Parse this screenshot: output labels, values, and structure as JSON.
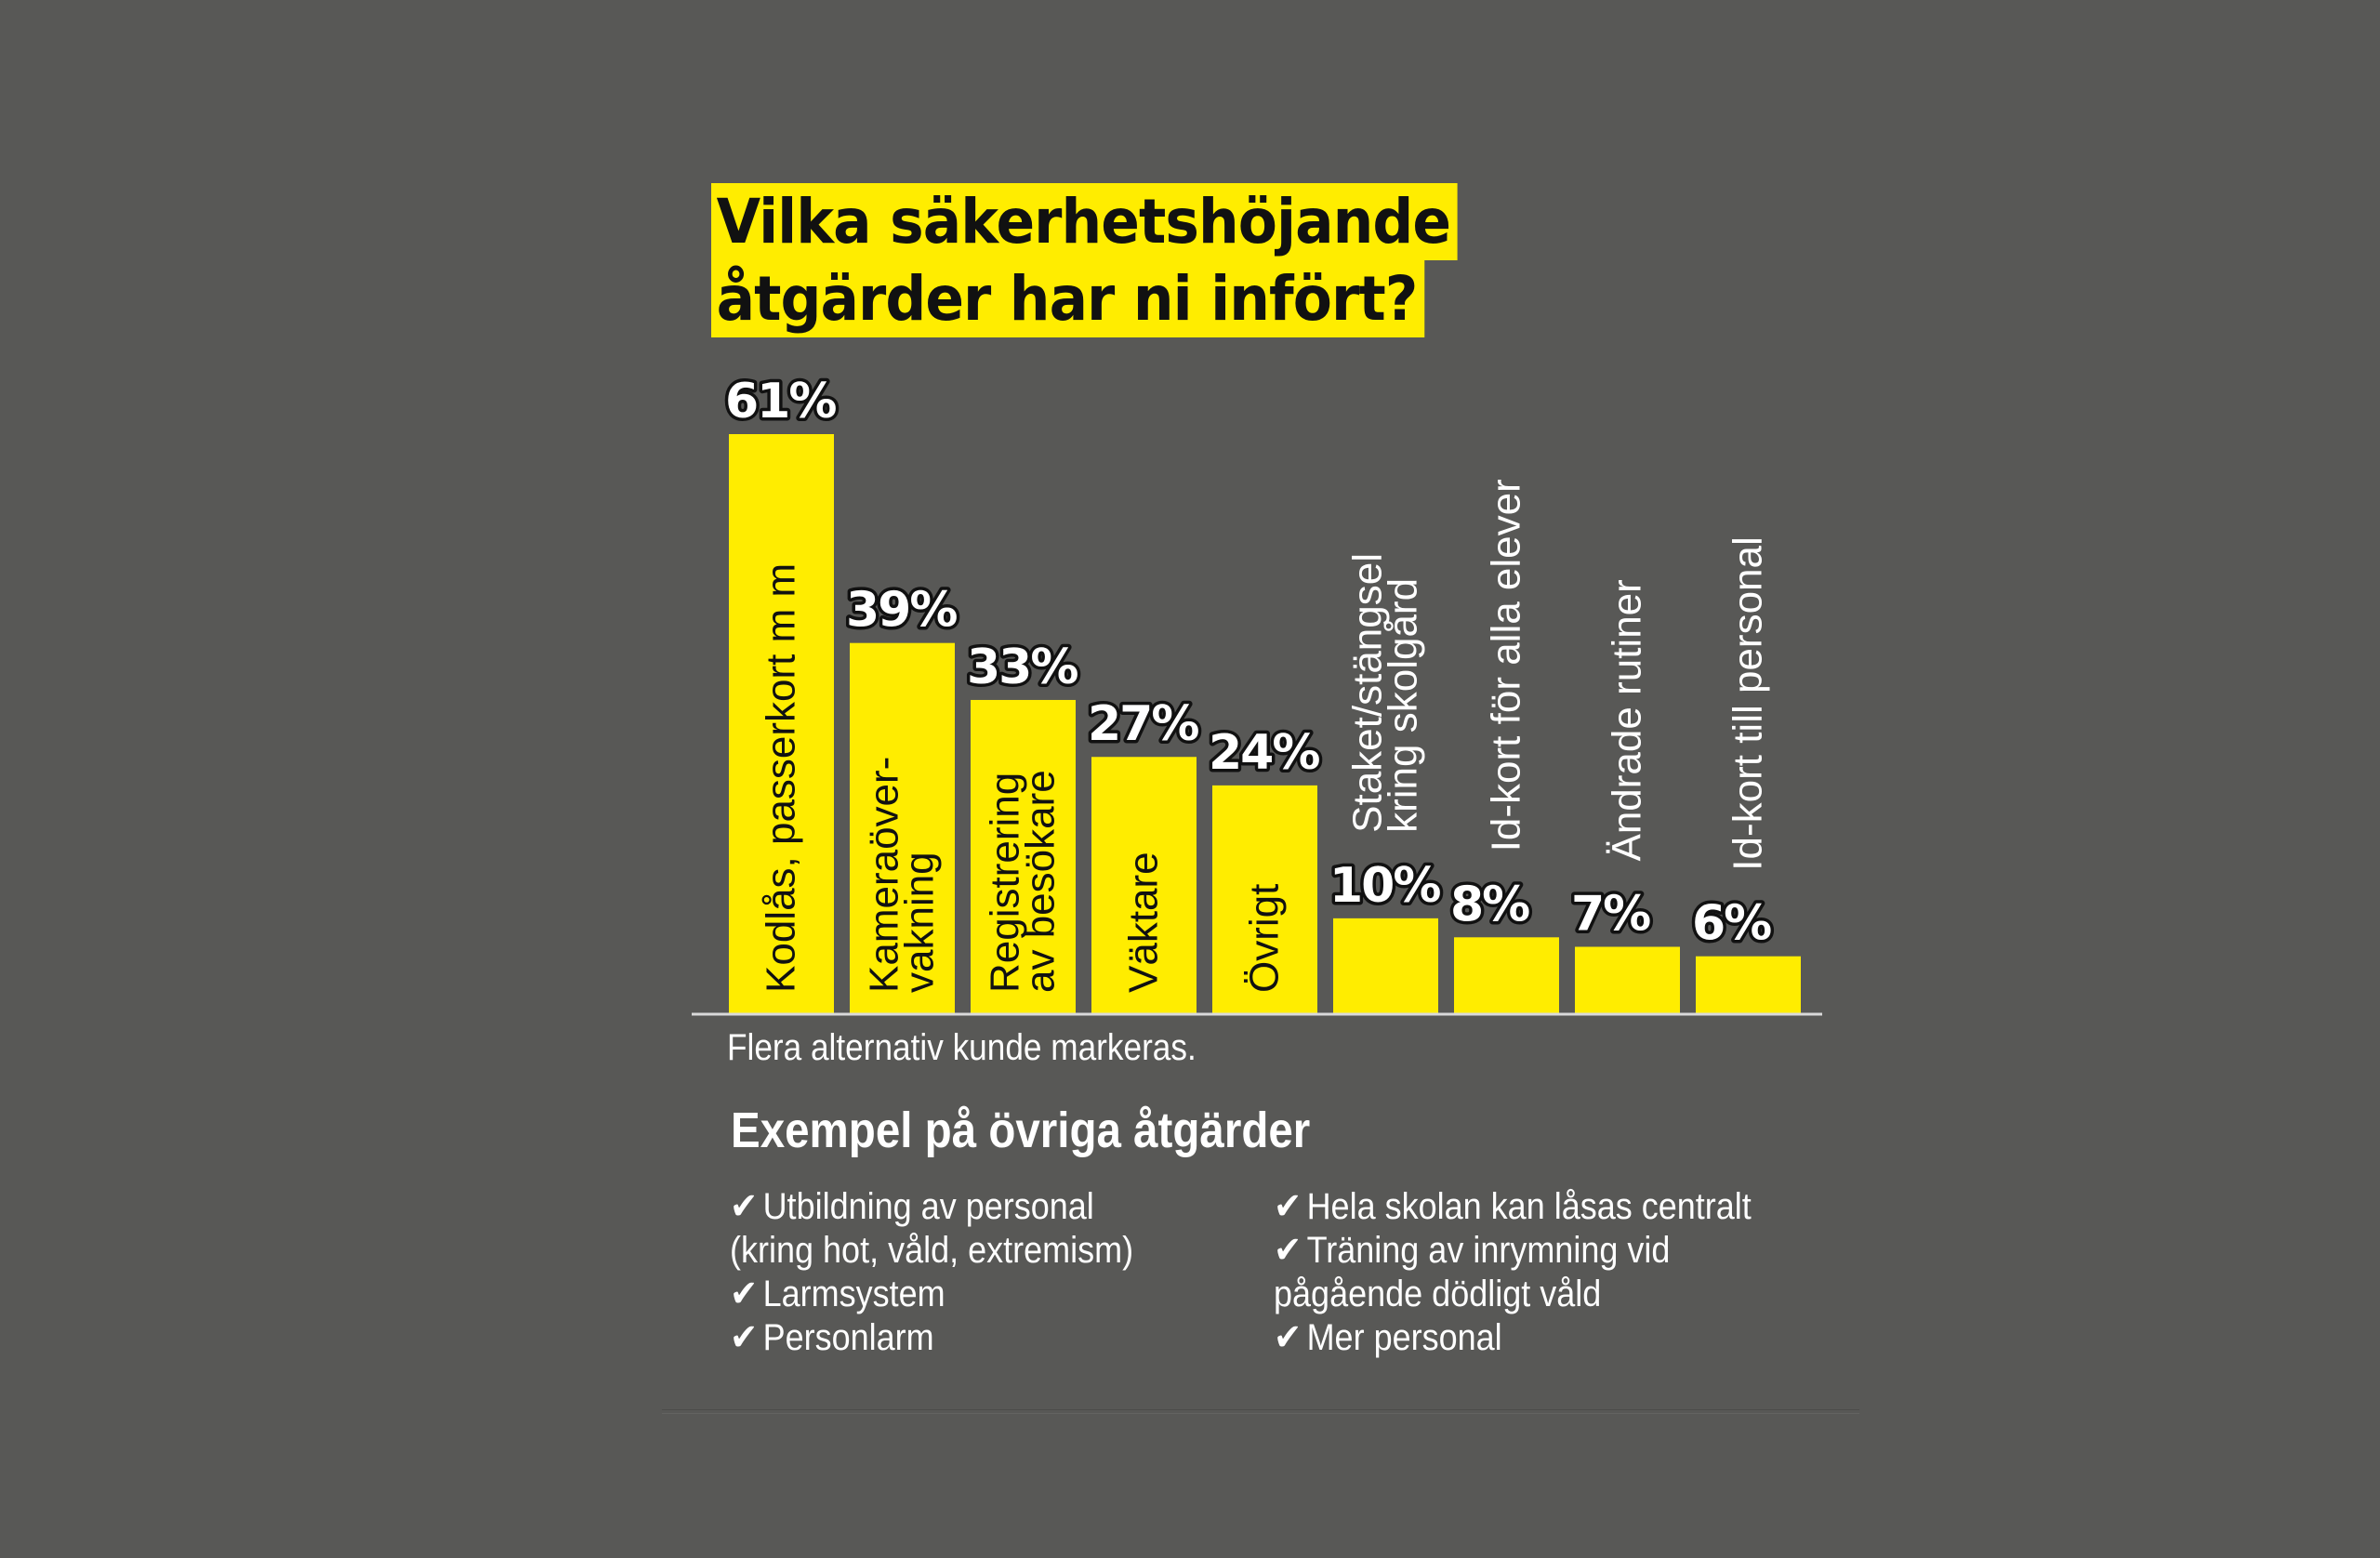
{
  "chart_data": {
    "type": "bar",
    "title": "Vilka säkerhetshöjande åtgärder har ni infört?",
    "title_lines": [
      "Vilka säkerhetshöjande",
      "åtgärder har ni infört?"
    ],
    "categories": [
      "Kodlås, passerkort m m",
      "Kameraöver-vakning",
      "Registrering av besökare",
      "Väktare",
      "Övrigt",
      "Staket/stängsel kring skolgård",
      "Id-kort för alla elever",
      "Ändrade rutiner",
      "Id-kort till personal"
    ],
    "category_label_lines": [
      [
        "Kodlås, passerkort m m"
      ],
      [
        "Kameraöver-",
        "vakning"
      ],
      [
        "Registrering",
        "av besökare"
      ],
      [
        "Väktare"
      ],
      [
        "Övrigt"
      ],
      [
        "Staket/stängsel",
        "kring skolgård"
      ],
      [
        "Id-kort för alla elever"
      ],
      [
        "Ändrade rutiner"
      ],
      [
        "Id-kort till personal"
      ]
    ],
    "values": [
      61,
      39,
      33,
      27,
      24,
      10,
      8,
      7,
      6
    ],
    "value_labels": [
      "61%",
      "39%",
      "33%",
      "27%",
      "24%",
      "10%",
      "8%",
      "7%",
      "6%"
    ],
    "unit": "%",
    "xlabel": "",
    "ylabel": "",
    "ylim": [
      0,
      61
    ],
    "grid": false,
    "legend": "none",
    "bar_color": "#ffed00",
    "annotation": "Flera alternativ kunde markeras."
  },
  "colors": {
    "background": "#585856",
    "accent": "#ffed00",
    "text_light": "#ffffff",
    "text_dark": "#111111"
  },
  "footer": {
    "note": "Flera alternativ kunde markeras.",
    "examples_heading": "Exempel på övriga åtgärder",
    "check_icon": "✔",
    "left_items": [
      "Utbildning av personal",
      "(kring hot, våld, extremism)",
      "Larmsystem",
      "Personlarm"
    ],
    "right_items": [
      "Hela skolan kan låsas centralt",
      "Träning av inrymning vid",
      "pågående dödligt våld",
      "Mer personal"
    ]
  }
}
